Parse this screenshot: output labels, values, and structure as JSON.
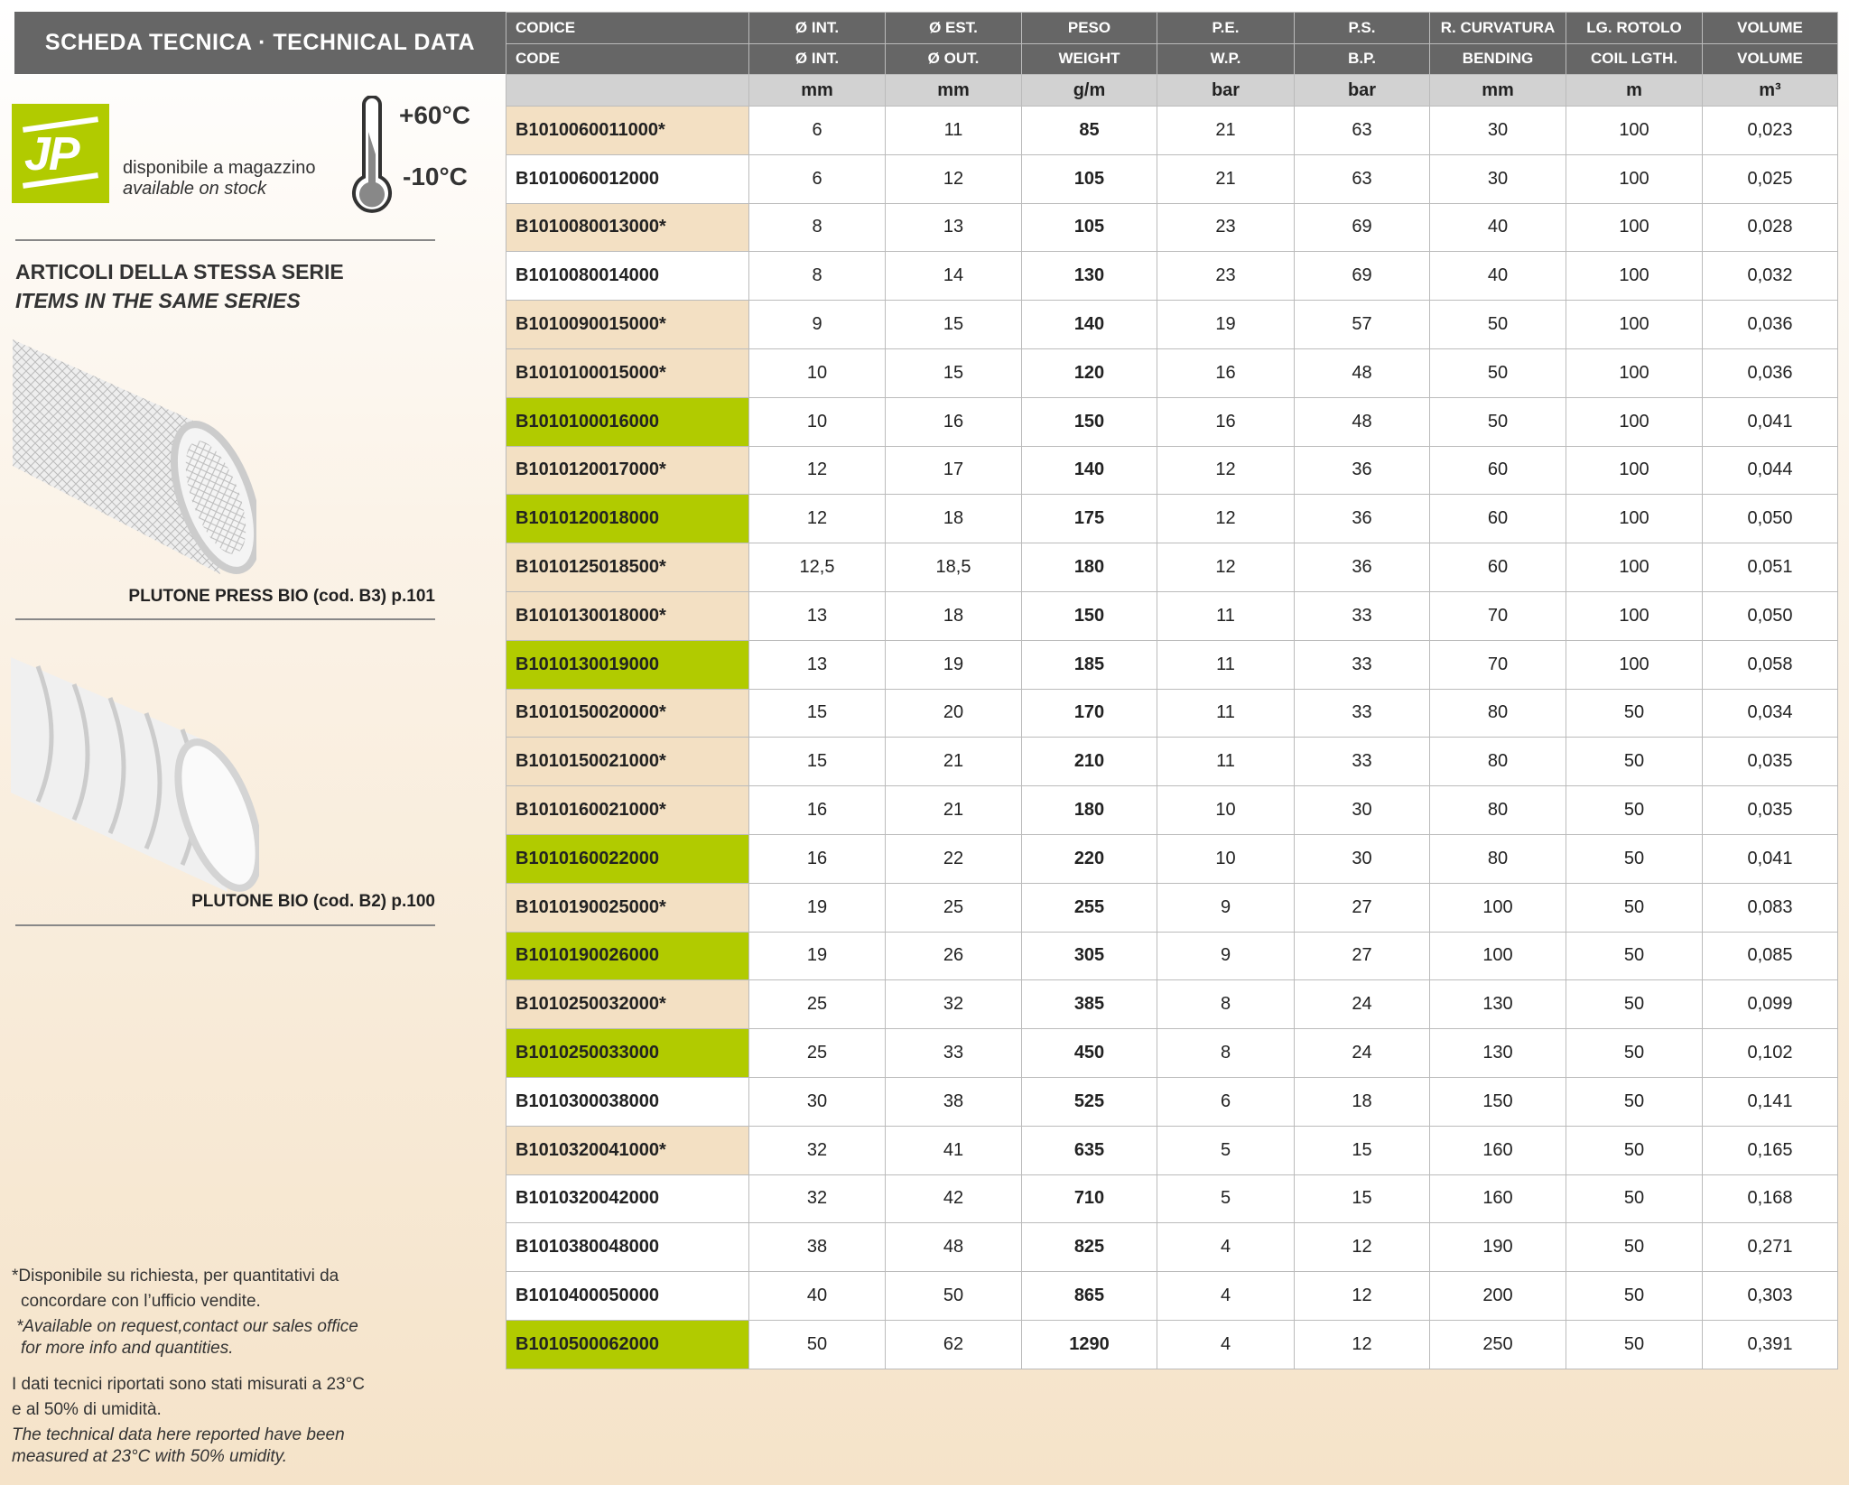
{
  "title": "SCHEDA TECNICA · TECHNICAL DATA",
  "stock": {
    "it": "disponibile a magazzino",
    "en": "available on stock",
    "logo_text": "JP",
    "logo_color": "#b1cb00"
  },
  "temperature": {
    "max": "+60°C",
    "min": "-10°C"
  },
  "series": {
    "heading_it": "ARTICOLI DELLA STESSA SERIE",
    "heading_en": "ITEMS IN THE SAME SERIES",
    "items": [
      {
        "caption": "PLUTONE PRESS BIO (cod. B3) p.101"
      },
      {
        "caption": "PLUTONE BIO (cod. B2) p.100"
      }
    ]
  },
  "notes": {
    "avail_it_1": "*Disponibile su richiesta, per quantitativi da",
    "avail_it_2": "concordare con l’ufficio vendite.",
    "avail_en_1": "*Available on request,contact our sales office",
    "avail_en_2": "for more info and quantities.",
    "measure_it_1": "I dati tecnici riportati sono stati misurati a 23°C",
    "measure_it_2": "e al 50% di umidità.",
    "measure_en_1": "The technical data here reported have been",
    "measure_en_2": "measured at 23°C with 50% umidity."
  },
  "colors": {
    "on_request": "#f3e0c3",
    "in_stock": "#b1cb00",
    "standard": "#ffffff",
    "header": "#666666"
  },
  "table": {
    "headers_it": [
      "CODICE",
      "Ø INT.",
      "Ø EST.",
      "PESO",
      "P.E.",
      "P.S.",
      "R. CURVATURA",
      "LG. ROTOLO",
      "VOLUME"
    ],
    "headers_en": [
      "CODE",
      "Ø INT.",
      "Ø OUT.",
      "WEIGHT",
      "W.P.",
      "B.P.",
      "BENDING",
      "COIL LGTH.",
      "VOLUME"
    ],
    "units": [
      "",
      "mm",
      "mm",
      "g/m",
      "bar",
      "bar",
      "mm",
      "m",
      "m³"
    ],
    "rows": [
      {
        "status": "beige",
        "cells": [
          "B1010060011000*",
          "6",
          "11",
          "85",
          "21",
          "63",
          "30",
          "100",
          "0,023"
        ]
      },
      {
        "status": "white",
        "cells": [
          "B1010060012000",
          "6",
          "12",
          "105",
          "21",
          "63",
          "30",
          "100",
          "0,025"
        ]
      },
      {
        "status": "beige",
        "cells": [
          "B1010080013000*",
          "8",
          "13",
          "105",
          "23",
          "69",
          "40",
          "100",
          "0,028"
        ]
      },
      {
        "status": "white",
        "cells": [
          "B1010080014000",
          "8",
          "14",
          "130",
          "23",
          "69",
          "40",
          "100",
          "0,032"
        ]
      },
      {
        "status": "beige",
        "cells": [
          "B1010090015000*",
          "9",
          "15",
          "140",
          "19",
          "57",
          "50",
          "100",
          "0,036"
        ]
      },
      {
        "status": "beige",
        "cells": [
          "B1010100015000*",
          "10",
          "15",
          "120",
          "16",
          "48",
          "50",
          "100",
          "0,036"
        ]
      },
      {
        "status": "green",
        "cells": [
          "B1010100016000",
          "10",
          "16",
          "150",
          "16",
          "48",
          "50",
          "100",
          "0,041"
        ]
      },
      {
        "status": "beige",
        "cells": [
          "B1010120017000*",
          "12",
          "17",
          "140",
          "12",
          "36",
          "60",
          "100",
          "0,044"
        ]
      },
      {
        "status": "green",
        "cells": [
          "B1010120018000",
          "12",
          "18",
          "175",
          "12",
          "36",
          "60",
          "100",
          "0,050"
        ]
      },
      {
        "status": "beige",
        "cells": [
          "B1010125018500*",
          "12,5",
          "18,5",
          "180",
          "12",
          "36",
          "60",
          "100",
          "0,051"
        ]
      },
      {
        "status": "beige",
        "cells": [
          "B1010130018000*",
          "13",
          "18",
          "150",
          "11",
          "33",
          "70",
          "100",
          "0,050"
        ]
      },
      {
        "status": "green",
        "cells": [
          "B1010130019000",
          "13",
          "19",
          "185",
          "11",
          "33",
          "70",
          "100",
          "0,058"
        ]
      },
      {
        "status": "beige",
        "cells": [
          "B1010150020000*",
          "15",
          "20",
          "170",
          "11",
          "33",
          "80",
          "50",
          "0,034"
        ]
      },
      {
        "status": "beige",
        "cells": [
          "B1010150021000*",
          "15",
          "21",
          "210",
          "11",
          "33",
          "80",
          "50",
          "0,035"
        ]
      },
      {
        "status": "beige",
        "cells": [
          "B1010160021000*",
          "16",
          "21",
          "180",
          "10",
          "30",
          "80",
          "50",
          "0,035"
        ]
      },
      {
        "status": "green",
        "cells": [
          "B1010160022000",
          "16",
          "22",
          "220",
          "10",
          "30",
          "80",
          "50",
          "0,041"
        ]
      },
      {
        "status": "beige",
        "cells": [
          "B1010190025000*",
          "19",
          "25",
          "255",
          "9",
          "27",
          "100",
          "50",
          "0,083"
        ]
      },
      {
        "status": "green",
        "cells": [
          "B1010190026000",
          "19",
          "26",
          "305",
          "9",
          "27",
          "100",
          "50",
          "0,085"
        ]
      },
      {
        "status": "beige",
        "cells": [
          "B1010250032000*",
          "25",
          "32",
          "385",
          "8",
          "24",
          "130",
          "50",
          "0,099"
        ]
      },
      {
        "status": "green",
        "cells": [
          "B1010250033000",
          "25",
          "33",
          "450",
          "8",
          "24",
          "130",
          "50",
          "0,102"
        ]
      },
      {
        "status": "white",
        "cells": [
          "B1010300038000",
          "30",
          "38",
          "525",
          "6",
          "18",
          "150",
          "50",
          "0,141"
        ]
      },
      {
        "status": "beige",
        "cells": [
          "B1010320041000*",
          "32",
          "41",
          "635",
          "5",
          "15",
          "160",
          "50",
          "0,165"
        ]
      },
      {
        "status": "white",
        "cells": [
          "B1010320042000",
          "32",
          "42",
          "710",
          "5",
          "15",
          "160",
          "50",
          "0,168"
        ]
      },
      {
        "status": "white",
        "cells": [
          "B1010380048000",
          "38",
          "48",
          "825",
          "4",
          "12",
          "190",
          "50",
          "0,271"
        ]
      },
      {
        "status": "white",
        "cells": [
          "B1010400050000",
          "40",
          "50",
          "865",
          "4",
          "12",
          "200",
          "50",
          "0,303"
        ]
      },
      {
        "status": "green",
        "cells": [
          "B1010500062000",
          "50",
          "62",
          "1290",
          "4",
          "12",
          "250",
          "50",
          "0,391"
        ]
      }
    ]
  }
}
